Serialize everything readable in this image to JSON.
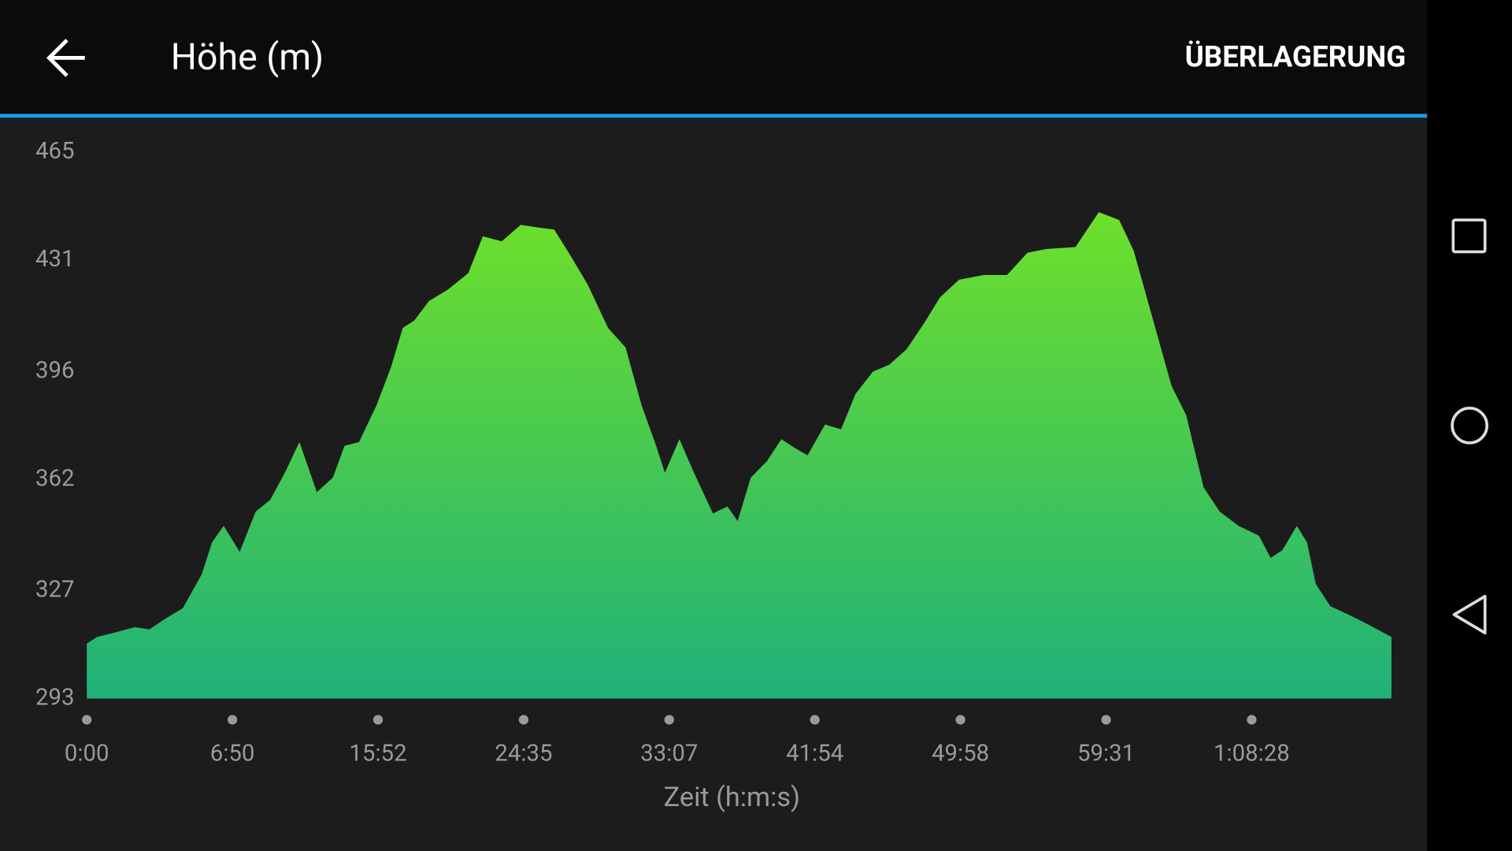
{
  "header": {
    "title": "Höhe (m)",
    "action": "ÜBERLAGERUNG"
  },
  "chart_data": {
    "type": "area",
    "x_label": "Zeit (h:m:s)",
    "x": [
      0,
      0.07,
      0.2,
      0.33,
      0.43,
      0.53,
      0.66,
      0.79,
      0.86,
      0.94,
      1.05,
      1.16,
      1.26,
      1.36,
      1.46,
      1.58,
      1.69,
      1.77,
      1.87,
      1.99,
      2.09,
      2.17,
      2.25,
      2.35,
      2.48,
      2.62,
      2.72,
      2.85,
      2.98,
      3.11,
      3.21,
      3.31,
      3.44,
      3.58,
      3.7,
      3.81,
      3.91,
      3.97,
      4.07,
      4.17,
      4.3,
      4.4,
      4.47,
      4.56,
      4.67,
      4.77,
      4.87,
      4.95,
      5.07,
      5.18,
      5.28,
      5.4,
      5.51,
      5.63,
      5.75,
      5.86,
      5.99,
      6.16,
      6.32,
      6.46,
      6.59,
      6.79,
      6.95,
      7.09,
      7.19,
      7.32,
      7.45,
      7.55,
      7.67,
      7.78,
      7.91,
      8.05,
      8.13,
      8.21,
      8.31,
      8.38,
      8.44,
      8.54,
      8.68,
      8.81,
      8.96
    ],
    "values": [
      310.3,
      312.4,
      313.9,
      315.5,
      314.8,
      317.9,
      321.5,
      332.2,
      342.2,
      347.4,
      339.2,
      351.9,
      355.6,
      364.1,
      373.8,
      358.0,
      362.6,
      372.6,
      373.8,
      385.4,
      397.5,
      409.7,
      412.1,
      418.2,
      421.8,
      427.0,
      438.6,
      437.0,
      442.2,
      441.3,
      440.7,
      433.4,
      423.4,
      409.7,
      403.6,
      385.4,
      372.6,
      364.1,
      374.7,
      364.1,
      351.3,
      353.5,
      348.9,
      362.6,
      367.7,
      374.7,
      371.7,
      369.6,
      379.3,
      377.8,
      389.0,
      396.0,
      398.1,
      403.0,
      411.2,
      419.4,
      424.9,
      426.4,
      426.4,
      433.4,
      434.6,
      435.2,
      446.2,
      443.7,
      434.0,
      412.7,
      391.4,
      382.3,
      359.5,
      351.9,
      347.4,
      344.3,
      337.3,
      339.7,
      347.4,
      342.2,
      329.1,
      322.1,
      319.1,
      316.1,
      312.4
    ],
    "colors": [
      "#6ee02a",
      "#1fb17a"
    ],
    "xlim": [
      0,
      8.96
    ],
    "xticks": [
      {
        "value": 0,
        "label": "0:00"
      },
      {
        "value": 1,
        "label": "6:50"
      },
      {
        "value": 2,
        "label": "15:52"
      },
      {
        "value": 3,
        "label": "24:35"
      },
      {
        "value": 4,
        "label": "33:07"
      },
      {
        "value": 5,
        "label": "41:54"
      },
      {
        "value": 6,
        "label": "49:58"
      },
      {
        "value": 7,
        "label": "59:31"
      },
      {
        "value": 8,
        "label": "1:08:28"
      }
    ],
    "ylim": [
      293,
      465
    ],
    "yticks": [
      293,
      327,
      362,
      396,
      431,
      465
    ]
  }
}
